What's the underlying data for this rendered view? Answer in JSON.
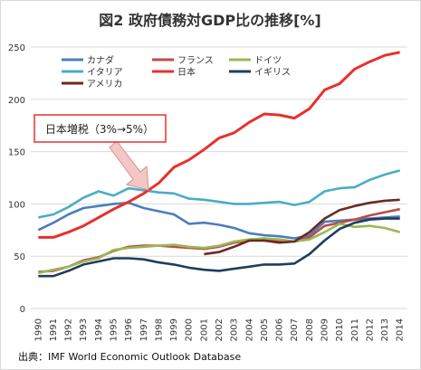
{
  "chart_data": {
    "type": "line",
    "title": "図2 政府債務対GDP比の推移[%]",
    "x": [
      1990,
      1991,
      1992,
      1993,
      1994,
      1995,
      1996,
      1997,
      1998,
      1999,
      2000,
      2001,
      2002,
      2003,
      2004,
      2005,
      2006,
      2007,
      2008,
      2009,
      2010,
      2011,
      2012,
      2013,
      2014
    ],
    "x_tick_labels": [
      "1990",
      "1991",
      "1992",
      "1993",
      "1994",
      "1995",
      "1996",
      "1997",
      "1998",
      "1999",
      "2000",
      "2001",
      "2002",
      "2003",
      "2004",
      "2005",
      "2006",
      "2007",
      "2008",
      "2009",
      "2010",
      "2011",
      "2012",
      "2013",
      "2014"
    ],
    "ylim": [
      0,
      250
    ],
    "y_ticks": [
      0,
      50,
      100,
      150,
      200,
      250
    ],
    "y_tick_labels": [
      "0",
      "50",
      "100",
      "150",
      "200",
      "250"
    ],
    "grid": true,
    "legend_placement": "top",
    "series": [
      {
        "name": "カナダ",
        "color": "#4a7ebb",
        "values": [
          75,
          82,
          90,
          96,
          98,
          100,
          101,
          96,
          93,
          90,
          81,
          82,
          80,
          77,
          72,
          70,
          69,
          67,
          70,
          83,
          84,
          85,
          86,
          87,
          88
        ]
      },
      {
        "name": "フランス",
        "color": "#be4b48",
        "values": [
          35,
          36,
          40,
          46,
          49,
          55,
          59,
          60,
          60,
          59,
          58,
          57,
          59,
          63,
          65,
          67,
          64,
          64,
          68,
          79,
          82,
          85,
          89,
          92,
          95
        ]
      },
      {
        "name": "ドイツ",
        "color": "#98b954",
        "values": [
          34,
          37,
          40,
          45,
          48,
          56,
          58,
          59,
          60,
          61,
          59,
          58,
          60,
          64,
          66,
          67,
          66,
          64,
          66,
          73,
          81,
          78,
          79,
          77,
          73
        ]
      },
      {
        "name": "イタリア",
        "color": "#4bacc6",
        "values": [
          87,
          90,
          97,
          106,
          112,
          108,
          115,
          113,
          111,
          110,
          105,
          104,
          102,
          100,
          100,
          101,
          102,
          99,
          102,
          112,
          115,
          116,
          123,
          128,
          132
        ]
      },
      {
        "name": "日本",
        "color": "#e8302c",
        "values": [
          68,
          68,
          73,
          79,
          87,
          95,
          102,
          110,
          120,
          135,
          142,
          152,
          163,
          168,
          178,
          186,
          185,
          182,
          191,
          209,
          215,
          229,
          236,
          242,
          245
        ]
      },
      {
        "name": "イギリス",
        "color": "#1f3d5b",
        "values": [
          31,
          31,
          36,
          42,
          45,
          48,
          48,
          47,
          44,
          42,
          39,
          37,
          36,
          38,
          40,
          42,
          42,
          43,
          52,
          65,
          76,
          82,
          85,
          86,
          86
        ]
      },
      {
        "name": "アメリカ",
        "color": "#6b2a22",
        "values": [
          null,
          null,
          null,
          null,
          null,
          null,
          null,
          null,
          null,
          null,
          null,
          52,
          54,
          59,
          65,
          65,
          63,
          64,
          73,
          86,
          94,
          98,
          101,
          103,
          104
        ]
      }
    ],
    "annotations": [
      {
        "text": "日本増税（3%→5%）",
        "target_x": 1997
      }
    ],
    "source": "出典：IMF World Economic Outlook Database"
  }
}
